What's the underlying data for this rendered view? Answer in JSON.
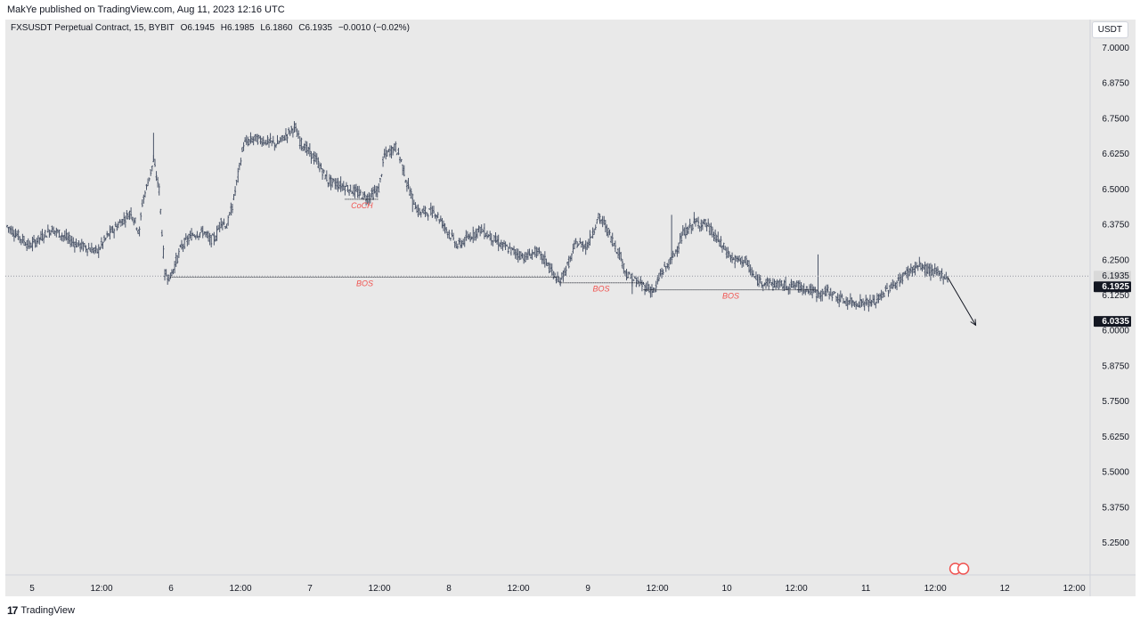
{
  "header": {
    "publish_text": "MakYe published on TradingView.com, Aug 11, 2023 12:16 UTC"
  },
  "legend": {
    "symbol": "FXSUSDT Perpetual Contract, 15, BYBIT",
    "open": "O6.1945",
    "high": "H6.1985",
    "low": "L6.1860",
    "close": "C6.1935",
    "change": "−0.0010 (−0.02%)"
  },
  "currency_button": "USDT",
  "footer": {
    "logo_mark": "17",
    "brand": "TradingView"
  },
  "colors": {
    "candle": "#4a5468",
    "annotation": "#f05350",
    "background": "#e9e9e9",
    "price_tag": "#131722"
  },
  "chart_data": {
    "type": "candlestick",
    "ylim": [
      5.15,
      7.1
    ],
    "y_ticks": [
      "7.0000",
      "6.8750",
      "6.7500",
      "6.6250",
      "6.5000",
      "6.3750",
      "6.2500",
      "6.1250",
      "6.0000",
      "5.8750",
      "5.7500",
      "5.6250",
      "5.5000",
      "5.3750",
      "5.2500"
    ],
    "x_ticks": [
      "5",
      "12:00",
      "6",
      "12:00",
      "7",
      "12:00",
      "8",
      "12:00",
      "9",
      "12:00",
      "10",
      "12:00",
      "11",
      "12:00",
      "12",
      "12:00"
    ],
    "price_path": [
      [
        0,
        6.37
      ],
      [
        4,
        6.3
      ],
      [
        8,
        6.36
      ],
      [
        12,
        6.31
      ],
      [
        16,
        6.28
      ],
      [
        18,
        6.34
      ],
      [
        20,
        6.38
      ],
      [
        22,
        6.42
      ],
      [
        23.5,
        6.35
      ],
      [
        24,
        6.45
      ],
      [
        26,
        6.6
      ],
      [
        27,
        6.5
      ],
      [
        28,
        6.2
      ],
      [
        29,
        6.19
      ],
      [
        31,
        6.3
      ],
      [
        33,
        6.34
      ],
      [
        35,
        6.35
      ],
      [
        36,
        6.32
      ],
      [
        37,
        6.33
      ],
      [
        38,
        6.39
      ],
      [
        39,
        6.37
      ],
      [
        40,
        6.44
      ],
      [
        42,
        6.66
      ],
      [
        44,
        6.68
      ],
      [
        48,
        6.66
      ],
      [
        51,
        6.72
      ],
      [
        52,
        6.67
      ],
      [
        55,
        6.6
      ],
      [
        57,
        6.53
      ],
      [
        60,
        6.51
      ],
      [
        64,
        6.47
      ],
      [
        66,
        6.5
      ],
      [
        67,
        6.62
      ],
      [
        69,
        6.65
      ],
      [
        70,
        6.6
      ],
      [
        71,
        6.52
      ],
      [
        72,
        6.47
      ],
      [
        73,
        6.42
      ],
      [
        76,
        6.42
      ],
      [
        80,
        6.3
      ],
      [
        84,
        6.36
      ],
      [
        88,
        6.3
      ],
      [
        92,
        6.26
      ],
      [
        94,
        6.28
      ],
      [
        96,
        6.24
      ],
      [
        97,
        6.2
      ],
      [
        98,
        6.17
      ],
      [
        100,
        6.25
      ],
      [
        101,
        6.31
      ],
      [
        103,
        6.3
      ],
      [
        105,
        6.4
      ],
      [
        106,
        6.38
      ],
      [
        108,
        6.3
      ],
      [
        109,
        6.26
      ],
      [
        110,
        6.2
      ],
      [
        112,
        6.17
      ],
      [
        113,
        6.16
      ],
      [
        114,
        6.15
      ],
      [
        115,
        6.14
      ],
      [
        116,
        6.2
      ],
      [
        118,
        6.25
      ],
      [
        120,
        6.34
      ],
      [
        122,
        6.38
      ],
      [
        124,
        6.38
      ],
      [
        127,
        6.3
      ],
      [
        129,
        6.25
      ],
      [
        131,
        6.25
      ],
      [
        133,
        6.18
      ],
      [
        135,
        6.17
      ],
      [
        138,
        6.16
      ],
      [
        140,
        6.16
      ],
      [
        142,
        6.15
      ],
      [
        144,
        6.13
      ],
      [
        146,
        6.14
      ],
      [
        148,
        6.11
      ],
      [
        150,
        6.1
      ],
      [
        152,
        6.1
      ],
      [
        154,
        6.1
      ],
      [
        156,
        6.14
      ],
      [
        158,
        6.17
      ],
      [
        160,
        6.21
      ],
      [
        162,
        6.23
      ],
      [
        164,
        6.21
      ],
      [
        166,
        6.2
      ],
      [
        167,
        6.185
      ]
    ],
    "wick_spikes": [
      [
        26,
        6.7
      ],
      [
        72,
        6.42
      ],
      [
        111,
        6.13
      ],
      [
        144,
        6.27
      ],
      [
        118,
        6.41
      ],
      [
        122,
        6.42
      ]
    ],
    "annotations": [
      {
        "label": "BOS",
        "level": 6.19,
        "x_start": 29,
        "x_end": 98
      },
      {
        "label": "BOS",
        "level": 6.17,
        "x_start": 98,
        "x_end": 113
      },
      {
        "label": "BOS",
        "level": 6.145,
        "x_start": 113,
        "x_end": 144
      },
      {
        "label": "CoCH",
        "level": 6.465,
        "x_start": 60,
        "x_end": 66
      }
    ],
    "projection_arrow": {
      "from": [
        167,
        6.19
      ],
      "to": [
        172,
        6.02
      ]
    },
    "price_tags": [
      {
        "label": "6.1935",
        "value": 6.1935,
        "style": "light"
      },
      {
        "label": "6.1925",
        "value": 6.1925,
        "style": "dark"
      },
      {
        "label": "6.0335",
        "value": 6.0335,
        "style": "dark"
      }
    ],
    "last_price_line": 6.1935
  }
}
